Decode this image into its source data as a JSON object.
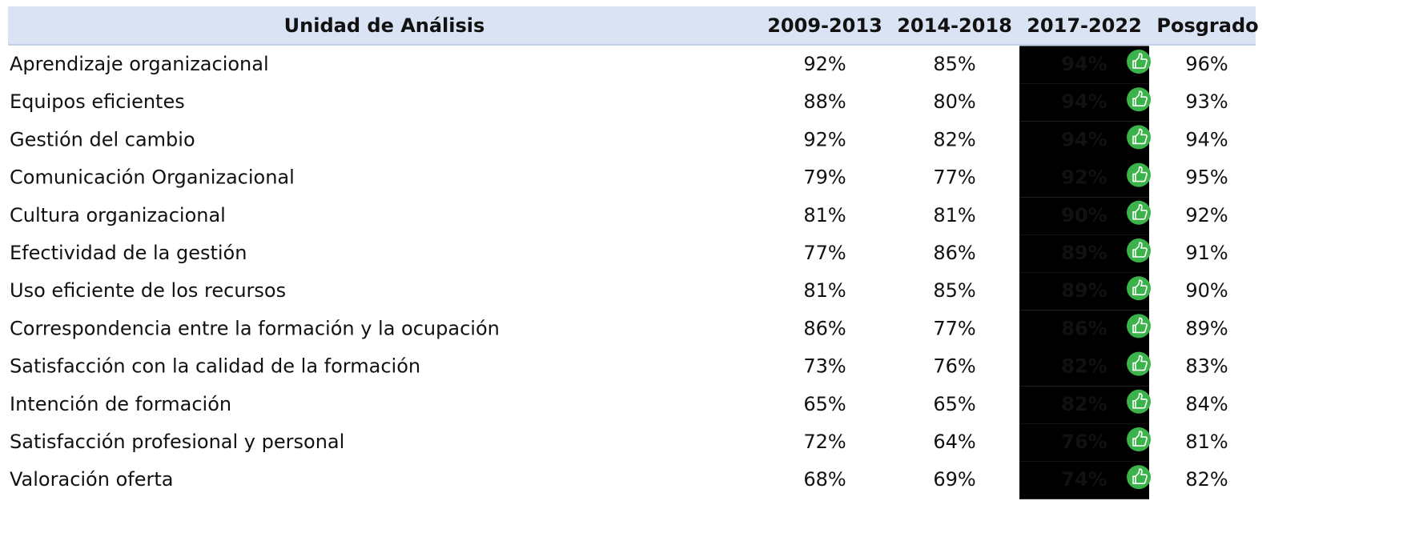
{
  "table": {
    "header": [
      "Unidad de Análisis",
      "2009-2013",
      "2014-2018",
      "2017-2022",
      "Posgrado"
    ],
    "rows": [
      [
        "Aprendizaje organizacional",
        "92%",
        "85%",
        "94%",
        "96%"
      ],
      [
        "Equipos eficientes",
        "88%",
        "80%",
        "94%",
        "93%"
      ],
      [
        "Gestión del cambio",
        "92%",
        "82%",
        "94%",
        "94%"
      ],
      [
        "Comunicación Organizacional",
        "79%",
        "77%",
        "92%",
        "95%"
      ],
      [
        "Cultura organizacional",
        "81%",
        "81%",
        "90%",
        "92%"
      ],
      [
        "Efectividad de la gestión",
        "77%",
        "86%",
        "89%",
        "91%"
      ],
      [
        "Uso eficiente de los recursos",
        "81%",
        "85%",
        "89%",
        "90%"
      ],
      [
        "Correspondencia entre la formación y la ocupación",
        "86%",
        "77%",
        "86%",
        "89%"
      ],
      [
        "Satisfacción con la calidad de la formación",
        "73%",
        "76%",
        "82%",
        "83%"
      ],
      [
        "Intención de formación",
        "65%",
        "65%",
        "82%",
        "84%"
      ],
      [
        "Satisfacción profesional y personal",
        "72%",
        "64%",
        "76%",
        "81%"
      ],
      [
        "Valoración oferta",
        "68%",
        "69%",
        "74%",
        "82%"
      ]
    ],
    "highlight_colors": [
      "#d9efdc",
      "#d9efdc",
      "#d9efdc",
      "#d9efdc",
      "#d9efdc",
      "#d9efdc",
      "#d9efdc",
      "#d9efdc",
      "#ffffcc",
      "#ffffcc",
      "#ffffcc",
      "#f9dadd"
    ]
  }
}
